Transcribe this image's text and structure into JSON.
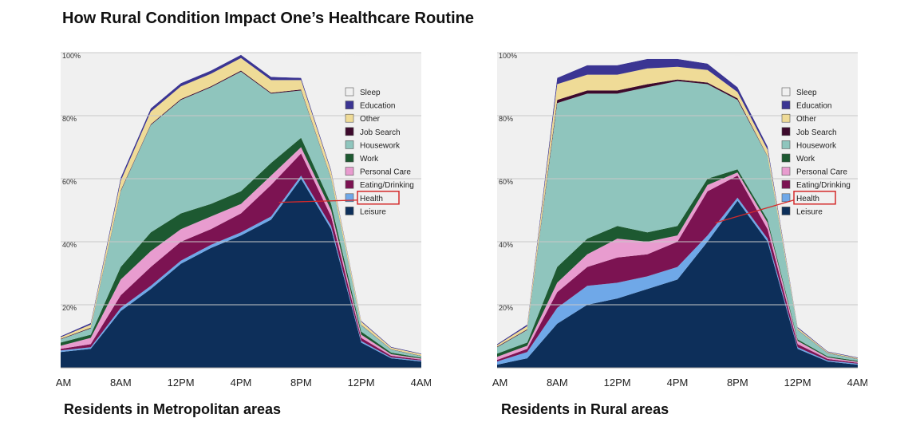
{
  "title": "How Rural Condition Impact One’s Healthcare Routine",
  "colors": {
    "Sleep": "#f0f0f0",
    "Education": "#3b3593",
    "Other": "#efdb97",
    "Job Search": "#3d0a2c",
    "Housework": "#8fc5bd",
    "Work": "#1d5931",
    "Personal Care": "#e89ccf",
    "Eating/Drinking": "#7c1352",
    "Health": "#6fa8e8",
    "Leisure": "#0d2f5a",
    "highlight": "#d42a2a",
    "plot_bg": "#efefef",
    "gridline": "#c8c8c8"
  },
  "chart_data": [
    {
      "type": "area",
      "stacked": true,
      "subtitle": "Residents in Metropolitan areas",
      "x": [
        "4AM",
        "6AM",
        "8AM",
        "10AM",
        "12PM",
        "2PM",
        "4PM",
        "6PM",
        "8PM",
        "10PM",
        "12AM",
        "2AM",
        "4AM"
      ],
      "x_tick_labels": [
        "4AM",
        "8AM",
        "12PM",
        "4PM",
        "8PM",
        "12PM",
        "4AM"
      ],
      "y_tick_labels": [
        "20%",
        "40%",
        "60%",
        "80%",
        "100%"
      ],
      "ylim": [
        0,
        100
      ],
      "grid": true,
      "legend_position": "right-inside",
      "highlight": "Health",
      "series": [
        {
          "name": "Leisure",
          "values": [
            5,
            6,
            18,
            25,
            33,
            38,
            42,
            47,
            60,
            44,
            8,
            3,
            2
          ]
        },
        {
          "name": "Health",
          "values": [
            0.5,
            0.5,
            1,
            1,
            1,
            1,
            1,
            1,
            1,
            1,
            0.5,
            0.3,
            0.3
          ]
        },
        {
          "name": "Eating/Drinking",
          "values": [
            0.5,
            1,
            4,
            6,
            6,
            5,
            6,
            10,
            7,
            3,
            1,
            0.5,
            0.3
          ]
        },
        {
          "name": "Personal Care",
          "values": [
            1,
            2,
            5,
            5,
            4,
            4,
            3,
            3,
            2,
            2,
            1,
            0.5,
            0.3
          ]
        },
        {
          "name": "Work",
          "values": [
            1,
            1,
            4,
            6,
            5,
            4,
            4,
            4,
            3,
            2,
            1,
            0.5,
            0.3
          ]
        },
        {
          "name": "Housework",
          "values": [
            1,
            2,
            24,
            34,
            36,
            37,
            38,
            22,
            15,
            8,
            2,
            1,
            0.5
          ]
        },
        {
          "name": "Job Search",
          "values": [
            0.2,
            0.2,
            0.3,
            0.3,
            0.3,
            0.3,
            0.3,
            0.3,
            0.3,
            0.2,
            0.1,
            0.1,
            0.1
          ]
        },
        {
          "name": "Other",
          "values": [
            0.5,
            1,
            3,
            4,
            4,
            4,
            4,
            4,
            3,
            2,
            1,
            0.5,
            0.5
          ]
        },
        {
          "name": "Education",
          "values": [
            0.3,
            0.5,
            1,
            1,
            1,
            1,
            1,
            1,
            0.7,
            0.5,
            0.3,
            0.2,
            0.2
          ]
        },
        {
          "name": "Sleep",
          "values": [
            90,
            86,
            40,
            18,
            10,
            6,
            1,
            8,
            8,
            37,
            84,
            93,
            95
          ]
        }
      ]
    },
    {
      "type": "area",
      "stacked": true,
      "subtitle": "Residents in Rural areas",
      "x": [
        "4AM",
        "6AM",
        "8AM",
        "10AM",
        "12PM",
        "2PM",
        "4PM",
        "6PM",
        "8PM",
        "10PM",
        "12AM",
        "2AM",
        "4AM"
      ],
      "x_tick_labels": [
        "4AM",
        "8AM",
        "12PM",
        "4PM",
        "8PM",
        "12PM",
        "4AM"
      ],
      "y_tick_labels": [
        "20%",
        "40%",
        "60%",
        "80%",
        "100%"
      ],
      "ylim": [
        0,
        100
      ],
      "grid": true,
      "legend_position": "right-inside",
      "highlight": "Health",
      "series": [
        {
          "name": "Leisure",
          "values": [
            1,
            3,
            14,
            20,
            22,
            25,
            28,
            40,
            53,
            40,
            6,
            2,
            1
          ]
        },
        {
          "name": "Health",
          "values": [
            1,
            2,
            5,
            6,
            5,
            4,
            4,
            2,
            1,
            1,
            0.5,
            0.3,
            0.3
          ]
        },
        {
          "name": "Eating/Drinking",
          "values": [
            0.5,
            1,
            5,
            6,
            8,
            7,
            8,
            14,
            7,
            3,
            1,
            0.5,
            0.3
          ]
        },
        {
          "name": "Personal Care",
          "values": [
            1,
            1,
            3,
            4,
            6,
            4,
            2,
            2,
            1,
            2,
            1,
            0.5,
            0.3
          ]
        },
        {
          "name": "Work",
          "values": [
            1,
            1,
            5,
            5,
            4,
            3,
            3,
            2,
            1,
            1,
            0.5,
            0.3,
            0.3
          ]
        },
        {
          "name": "Housework",
          "values": [
            2,
            4,
            52,
            46,
            42,
            46,
            46,
            30,
            22,
            20,
            3,
            1,
            0.5
          ]
        },
        {
          "name": "Job Search",
          "values": [
            0.2,
            0.2,
            1,
            1,
            1,
            1,
            0.5,
            0.5,
            0.5,
            0.2,
            0.1,
            0.1,
            0.1
          ]
        },
        {
          "name": "Other",
          "values": [
            0.5,
            1,
            5,
            5,
            5,
            5,
            4,
            4,
            2,
            2,
            0.5,
            0.3,
            0.3
          ]
        },
        {
          "name": "Education",
          "values": [
            0.3,
            0.5,
            2,
            3,
            3,
            3,
            2.5,
            2,
            1.5,
            1,
            0.3,
            0.2,
            0.2
          ]
        },
        {
          "name": "Sleep",
          "values": [
            92.5,
            86.3,
            8,
            4,
            4,
            2,
            2,
            3.5,
            10,
            29.8,
            87,
            94.3,
            96.3
          ]
        }
      ]
    }
  ]
}
